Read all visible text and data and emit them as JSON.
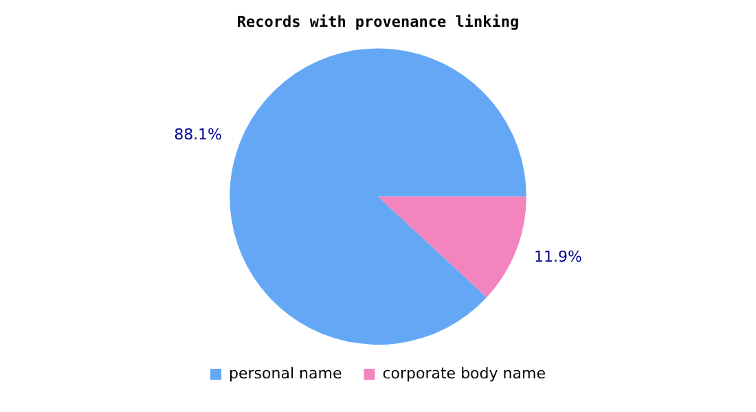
{
  "chart_data": {
    "type": "pie",
    "title": "Records with provenance linking",
    "categories": [
      "personal name",
      "corporate body name"
    ],
    "values": [
      88.1,
      11.9
    ],
    "colors": [
      "#64a8f5",
      "#f484be"
    ],
    "value_labels": [
      "88.1%",
      "11.9%"
    ],
    "legend": "bottom"
  }
}
